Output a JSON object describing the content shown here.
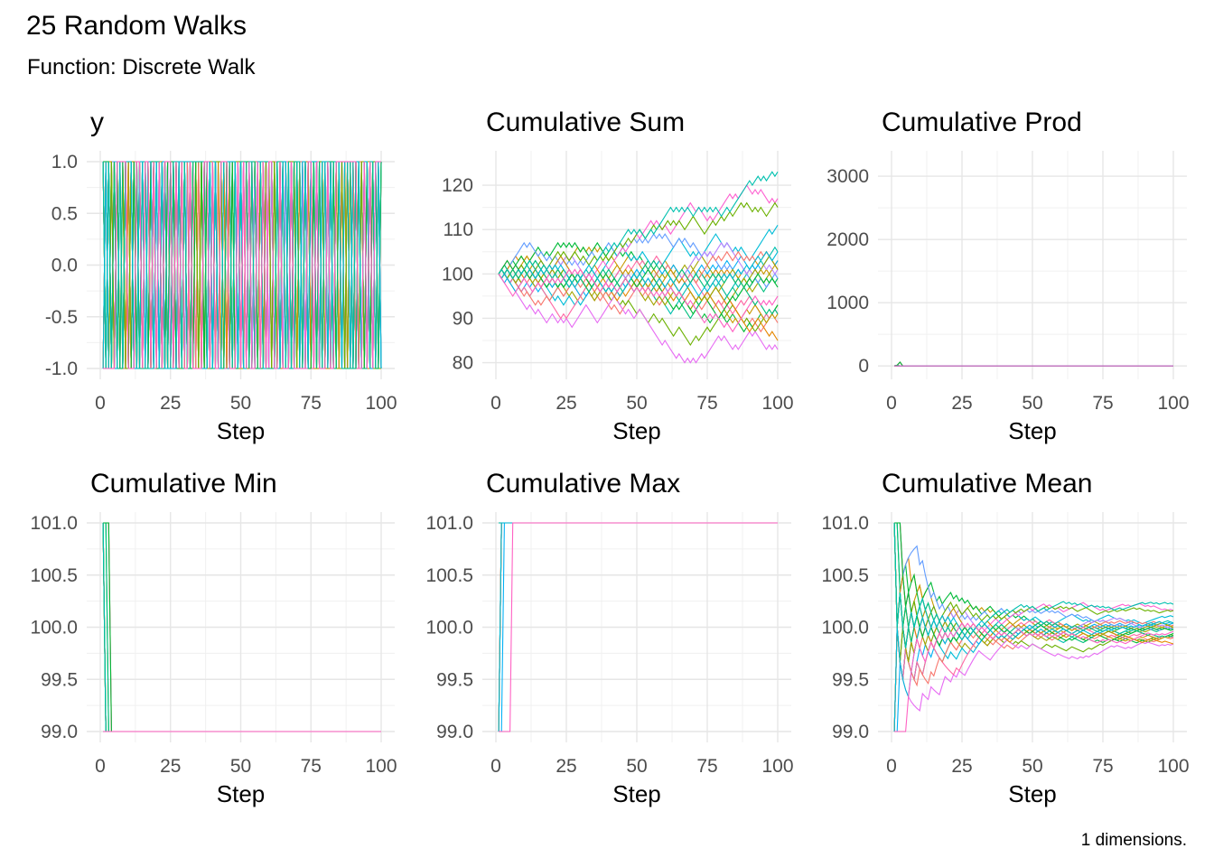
{
  "title": "25 Random Walks",
  "subtitle": "Function: Discrete Walk",
  "caption": "1 dimensions.",
  "palette": [
    "#F8766D",
    "#E58700",
    "#C99800",
    "#A3A500",
    "#6BB100",
    "#00BA38",
    "#00BF7D",
    "#00C0AF",
    "#00BCD8",
    "#00B0F6",
    "#619CFF",
    "#B983FF",
    "#E76BF3",
    "#FD61D1",
    "#FF67A4",
    "#F8766D",
    "#E58700",
    "#C99800",
    "#A3A500",
    "#6BB100",
    "#00BA38",
    "#00BF7D",
    "#00C0AF",
    "#00BCD8",
    "#FF61C3"
  ],
  "chart_data": [
    {
      "type": "line",
      "title": "y",
      "xlabel": "Step",
      "xlim": [
        0,
        100
      ],
      "ylim": [
        -1.0,
        1.0
      ],
      "xticks": [
        0,
        25,
        50,
        75,
        100
      ],
      "xtick_labels": [
        "0",
        "25",
        "50",
        "75",
        "100"
      ],
      "yticks": [
        -1.0,
        -0.5,
        0.0,
        0.5,
        1.0
      ],
      "ytick_labels": [
        "-1.0",
        "-0.5",
        "0.0",
        "0.5",
        "1.0"
      ],
      "series_count": 25,
      "kind": "steps",
      "grid": true
    },
    {
      "type": "line",
      "title": "Cumulative Sum",
      "xlabel": "Step",
      "xlim": [
        0,
        100
      ],
      "ylim": [
        78.7,
        125.3
      ],
      "xticks": [
        0,
        25,
        50,
        75,
        100
      ],
      "xtick_labels": [
        "0",
        "25",
        "50",
        "75",
        "100"
      ],
      "yticks": [
        80,
        90,
        100,
        110,
        120
      ],
      "ytick_labels": [
        "80",
        "90",
        "100",
        "110",
        "120"
      ],
      "series_count": 25,
      "kind": "cumsum",
      "grid": true
    },
    {
      "type": "line",
      "title": "Cumulative Prod",
      "xlabel": "Step",
      "xlim": [
        0,
        100
      ],
      "ylim": [
        -40,
        3230
      ],
      "xticks": [
        0,
        25,
        50,
        75,
        100
      ],
      "xtick_labels": [
        "0",
        "25",
        "50",
        "75",
        "100"
      ],
      "yticks": [
        0,
        1000,
        2000,
        3000
      ],
      "ytick_labels": [
        "0",
        "1000",
        "2000",
        "3000"
      ],
      "series_count": 25,
      "kind": "cumprod",
      "grid": true
    },
    {
      "type": "line",
      "title": "Cumulative Min",
      "xlabel": "Step",
      "xlim": [
        0,
        100
      ],
      "ylim": [
        99.0,
        101.0
      ],
      "xticks": [
        0,
        25,
        50,
        75,
        100
      ],
      "xtick_labels": [
        "0",
        "25",
        "50",
        "75",
        "100"
      ],
      "yticks": [
        99.0,
        99.5,
        100.0,
        100.5,
        101.0
      ],
      "ytick_labels": [
        "99.0",
        "99.5",
        "100.0",
        "100.5",
        "101.0"
      ],
      "series_count": 25,
      "kind": "cummin",
      "grid": true
    },
    {
      "type": "line",
      "title": "Cumulative Max",
      "xlabel": "Step",
      "xlim": [
        0,
        100
      ],
      "ylim": [
        99.0,
        101.0
      ],
      "xticks": [
        0,
        25,
        50,
        75,
        100
      ],
      "xtick_labels": [
        "0",
        "25",
        "50",
        "75",
        "100"
      ],
      "yticks": [
        99.0,
        99.5,
        100.0,
        100.5,
        101.0
      ],
      "ytick_labels": [
        "99.0",
        "99.5",
        "100.0",
        "100.5",
        "101.0"
      ],
      "series_count": 25,
      "kind": "cummax",
      "grid": true
    },
    {
      "type": "line",
      "title": "Cumulative Mean",
      "xlabel": "Step",
      "xlim": [
        0,
        100
      ],
      "ylim": [
        99.0,
        101.0
      ],
      "xticks": [
        0,
        25,
        50,
        75,
        100
      ],
      "xtick_labels": [
        "0",
        "25",
        "50",
        "75",
        "100"
      ],
      "yticks": [
        99.0,
        99.5,
        100.0,
        100.5,
        101.0
      ],
      "ytick_labels": [
        "99.0",
        "99.5",
        "100.0",
        "100.5",
        "101.0"
      ],
      "series_count": 25,
      "kind": "cummean",
      "grid": true
    }
  ]
}
